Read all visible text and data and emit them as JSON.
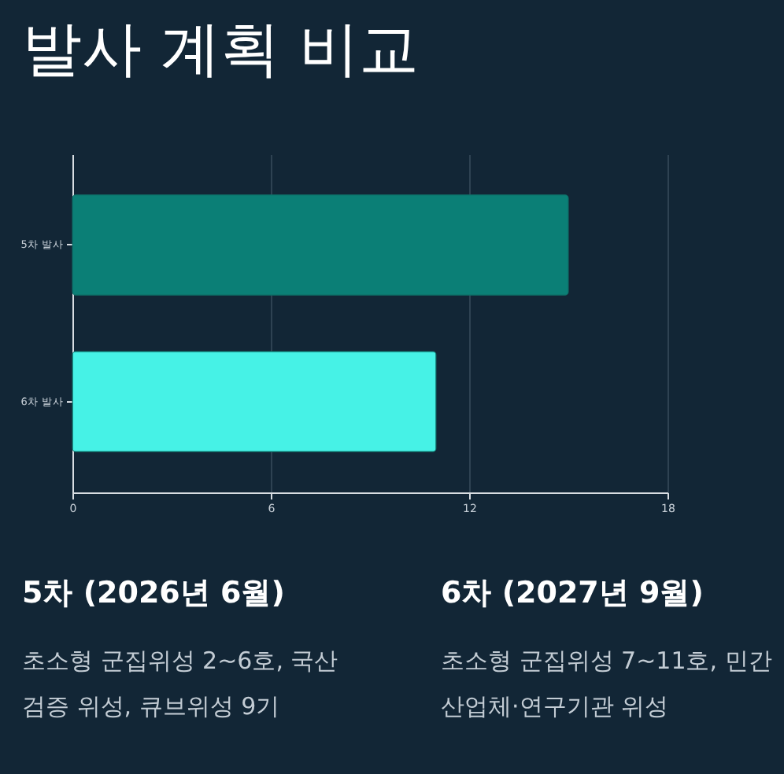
{
  "chart_data": {
    "type": "bar",
    "orientation": "horizontal",
    "title": "발사 계획 비교",
    "categories": [
      "5차 발사",
      "6차 발사"
    ],
    "values": [
      15,
      11
    ],
    "colors": [
      "#0b7f76",
      "#46f2e6"
    ],
    "xlim": [
      0,
      18
    ],
    "xticks": [
      0,
      6,
      12,
      18
    ],
    "grid": "x",
    "annotations": [
      "5차 (2026년 6월)",
      "초소형 군집위성 2~6호, 국산 검증 위성, 큐브위성 9기",
      "6차 (2027년 9월)",
      "초소형 군집위성 7~11호, 민간 산업체·연구기관 위성"
    ]
  }
}
